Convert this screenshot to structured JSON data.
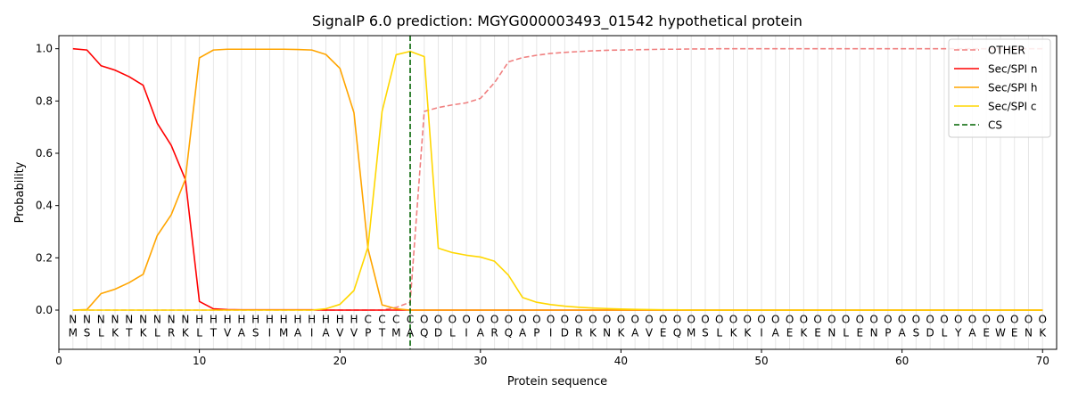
{
  "chart_data": {
    "type": "line",
    "title": "SignalP 6.0 prediction: MGYG000003493_01542 hypothetical protein",
    "xlabel": "Protein sequence",
    "ylabel": "Probability",
    "xlim": [
      0,
      71
    ],
    "ylim": [
      -0.15,
      1.05
    ],
    "xticks": [
      0,
      10,
      20,
      30,
      40,
      50,
      60,
      70
    ],
    "yticks": [
      0.0,
      0.2,
      0.4,
      0.6,
      0.8,
      1.0
    ],
    "grid": "vertical lines at each residue",
    "legend_position": "top-right",
    "sequence": [
      "M",
      "S",
      "L",
      "K",
      "T",
      "K",
      "L",
      "R",
      "K",
      "L",
      "T",
      "V",
      "A",
      "S",
      "I",
      "M",
      "A",
      "I",
      "A",
      "V",
      "V",
      "P",
      "T",
      "M",
      "A",
      "Q",
      "D",
      "L",
      "I",
      "A",
      "R",
      "Q",
      "A",
      "P",
      "I",
      "D",
      "R",
      "K",
      "N",
      "K",
      "A",
      "V",
      "E",
      "Q",
      "M",
      "S",
      "L",
      "K",
      "K",
      "I",
      "A",
      "E",
      "K",
      "E",
      "N",
      "L",
      "E",
      "N",
      "P",
      "A",
      "S",
      "D",
      "L",
      "Y",
      "A",
      "E",
      "W",
      "E",
      "N",
      "K"
    ],
    "labels": [
      "N",
      "N",
      "N",
      "N",
      "N",
      "N",
      "N",
      "N",
      "N",
      "H",
      "H",
      "H",
      "H",
      "H",
      "H",
      "H",
      "H",
      "H",
      "H",
      "H",
      "H",
      "C",
      "C",
      "C",
      "C",
      "O",
      "O",
      "O",
      "O",
      "O",
      "O",
      "O",
      "O",
      "O",
      "O",
      "O",
      "O",
      "O",
      "O",
      "O",
      "O",
      "O",
      "O",
      "O",
      "O",
      "O",
      "O",
      "O",
      "O",
      "O",
      "O",
      "O",
      "O",
      "O",
      "O",
      "O",
      "O",
      "O",
      "O",
      "O",
      "O",
      "O",
      "O",
      "O",
      "O",
      "O",
      "O",
      "O",
      "O",
      "O"
    ],
    "label_colors": {
      "N": "#ff0000",
      "H": "#ffa500",
      "C": "#ffd700",
      "O": "#808080"
    },
    "cs_position": 25,
    "series": [
      {
        "name": "OTHER",
        "color": "#f08080",
        "dash": "dashed",
        "values": [
          0,
          0,
          0,
          0,
          0,
          0,
          0,
          0,
          0,
          0,
          0,
          0,
          0,
          0,
          0,
          0,
          0,
          0,
          0,
          0,
          0,
          0,
          0,
          0.01,
          0.03,
          0.76,
          0.775,
          0.785,
          0.793,
          0.81,
          0.87,
          0.95,
          0.966,
          0.975,
          0.982,
          0.986,
          0.989,
          0.992,
          0.994,
          0.995,
          0.996,
          0.997,
          0.998,
          0.998,
          0.999,
          0.999,
          1,
          1,
          1,
          1,
          1,
          1,
          1,
          1,
          1,
          1,
          1,
          1,
          1,
          1,
          1,
          1,
          1,
          1,
          1,
          1,
          1,
          1,
          1,
          1
        ]
      },
      {
        "name": "Sec/SPI n",
        "color": "#ff0000",
        "dash": "solid",
        "values": [
          1.0,
          0.995,
          0.935,
          0.918,
          0.893,
          0.86,
          0.715,
          0.63,
          0.5,
          0.033,
          0.005,
          0.002,
          0.001,
          0.001,
          0.001,
          0.001,
          0.001,
          0.001,
          0,
          0,
          0,
          0,
          0,
          0,
          0,
          0,
          0,
          0,
          0,
          0,
          0,
          0,
          0,
          0,
          0,
          0,
          0,
          0,
          0,
          0,
          0,
          0,
          0,
          0,
          0,
          0,
          0,
          0,
          0,
          0,
          0,
          0,
          0,
          0,
          0,
          0,
          0,
          0,
          0,
          0,
          0,
          0,
          0,
          0,
          0,
          0,
          0,
          0,
          0,
          0
        ]
      },
      {
        "name": "Sec/SPI h",
        "color": "#ffa500",
        "dash": "solid",
        "values": [
          0,
          0.002,
          0.063,
          0.08,
          0.105,
          0.137,
          0.285,
          0.365,
          0.5,
          0.965,
          0.995,
          0.998,
          0.998,
          0.998,
          0.998,
          0.998,
          0.997,
          0.995,
          0.978,
          0.925,
          0.755,
          0.235,
          0.02,
          0.005,
          0,
          0,
          0,
          0,
          0,
          0,
          0,
          0,
          0,
          0,
          0,
          0,
          0,
          0,
          0,
          0,
          0,
          0,
          0,
          0,
          0,
          0,
          0,
          0,
          0,
          0,
          0,
          0,
          0,
          0,
          0,
          0,
          0,
          0,
          0,
          0,
          0,
          0,
          0,
          0,
          0,
          0,
          0,
          0,
          0,
          0
        ]
      },
      {
        "name": "Sec/SPI c",
        "color": "#ffd700",
        "dash": "solid",
        "values": [
          0,
          0,
          0,
          0,
          0,
          0,
          0,
          0,
          0,
          0,
          0,
          0,
          0,
          0,
          0,
          0,
          0,
          0,
          0.005,
          0.022,
          0.075,
          0.242,
          0.76,
          0.977,
          0.99,
          0.97,
          0.237,
          0.22,
          0.21,
          0.203,
          0.187,
          0.133,
          0.048,
          0.03,
          0.021,
          0.015,
          0.011,
          0.008,
          0.006,
          0.004,
          0.003,
          0.002,
          0.001,
          0.001,
          0,
          0,
          0,
          0,
          0,
          0,
          0,
          0,
          0,
          0,
          0,
          0,
          0,
          0,
          0,
          0,
          0,
          0,
          0,
          0,
          0,
          0,
          0,
          0,
          0,
          0
        ]
      }
    ],
    "legend": [
      {
        "name": "OTHER",
        "color": "#f08080",
        "dash": "dashed"
      },
      {
        "name": "Sec/SPI n",
        "color": "#ff0000",
        "dash": "solid"
      },
      {
        "name": "Sec/SPI h",
        "color": "#ffa500",
        "dash": "solid"
      },
      {
        "name": "Sec/SPI c",
        "color": "#ffd700",
        "dash": "solid"
      },
      {
        "name": "CS",
        "color": "#006400",
        "dash": "dashed"
      }
    ]
  }
}
